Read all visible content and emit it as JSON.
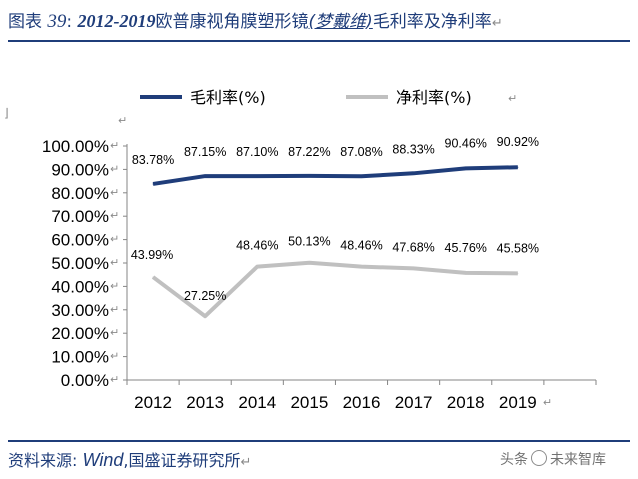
{
  "title": {
    "prefix": "图表",
    "number": "39",
    "colon": ":",
    "years": "2012-2019",
    "text_a": "欧普康视角膜塑形镜",
    "brand": "(梦戴维)",
    "text_b": "毛利率及净利率"
  },
  "footer": {
    "label": "资料来源:",
    "source": "Wind",
    "sep": ",",
    "org": "国盛证券研究所"
  },
  "watermark": {
    "text_a": "头条",
    "text_b": "未来智库"
  },
  "colors": {
    "gross_line": "#1f3d7a",
    "net_line": "#c0c0c0",
    "title_text": "#1f3d7a",
    "rule": "#1f3d7a"
  },
  "chart_data": {
    "type": "line",
    "categories": [
      "2012",
      "2013",
      "2014",
      "2015",
      "2016",
      "2017",
      "2018",
      "2019"
    ],
    "y_ticks": [
      "100.00%",
      "90.00%",
      "80.00%",
      "70.00%",
      "60.00%",
      "50.00%",
      "40.00%",
      "30.00%",
      "20.00%",
      "10.00%",
      "0.00%"
    ],
    "ylim": [
      0,
      100
    ],
    "grid": false,
    "legend_position": "top",
    "series": [
      {
        "name": "毛利率(%)",
        "values": [
          83.78,
          87.15,
          87.1,
          87.22,
          87.08,
          88.33,
          90.46,
          90.92
        ],
        "labels": [
          "83.78%",
          "87.15%",
          "87.10%",
          "87.22%",
          "87.08%",
          "88.33%",
          "90.46%",
          "90.92%"
        ]
      },
      {
        "name": "净利率(%)",
        "values": [
          43.99,
          27.25,
          48.46,
          50.13,
          48.46,
          47.68,
          45.76,
          45.58
        ],
        "labels": [
          "43.99%",
          "27.25%",
          "48.46%",
          "50.13%",
          "48.46%",
          "47.68%",
          "45.76%",
          "45.58%"
        ]
      }
    ]
  }
}
